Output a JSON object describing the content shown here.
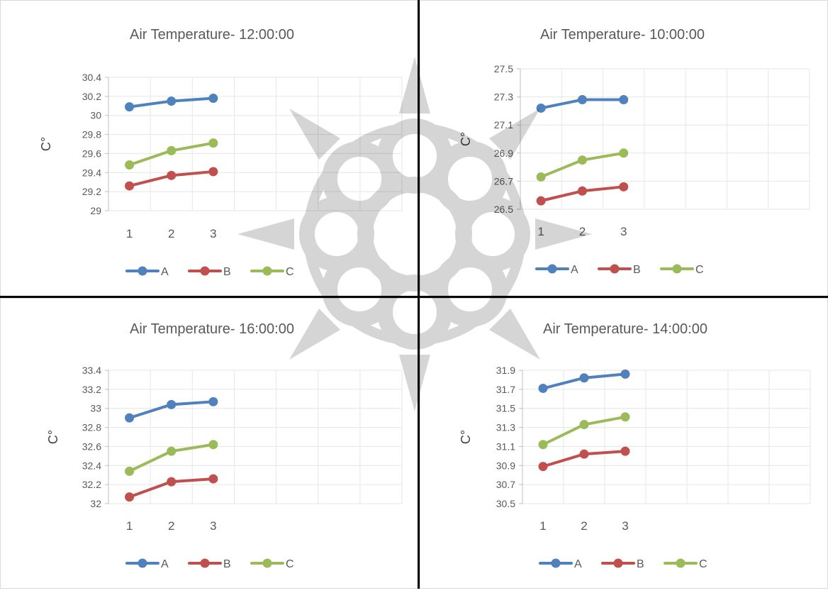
{
  "charts": [
    {
      "title": "Air Temperature- 12:00:00",
      "ylabel": "C°",
      "ylim": [
        29,
        30.4
      ],
      "yticks": [
        "29",
        "29.2",
        "29.4",
        "29.6",
        "29.8",
        "30",
        "30.2",
        "30.4"
      ],
      "xticks": [
        "1",
        "2",
        "3"
      ],
      "series": [
        {
          "name": "A",
          "color": "#4f81bd",
          "values": [
            30.09,
            30.15,
            30.18
          ]
        },
        {
          "name": "B",
          "color": "#c0504d",
          "values": [
            29.26,
            29.37,
            29.41
          ]
        },
        {
          "name": "C",
          "color": "#9bbb59",
          "values": [
            29.48,
            29.63,
            29.71
          ]
        }
      ]
    },
    {
      "title": "Air Temperature- 10:00:00",
      "ylabel": "C°",
      "ylim": [
        26.5,
        27.5
      ],
      "yticks": [
        "26.5",
        "26.7",
        "26.9",
        "27.1",
        "27.3",
        "27.5"
      ],
      "xticks": [
        "1",
        "2",
        "3"
      ],
      "series": [
        {
          "name": "A",
          "color": "#4f81bd",
          "values": [
            27.22,
            27.28,
            27.28
          ]
        },
        {
          "name": "B",
          "color": "#c0504d",
          "values": [
            26.56,
            26.63,
            26.66
          ]
        },
        {
          "name": "C",
          "color": "#9bbb59",
          "values": [
            26.73,
            26.85,
            26.9
          ]
        }
      ]
    },
    {
      "title": "Air Temperature- 16:00:00",
      "ylabel": "C°",
      "ylim": [
        32,
        33.4
      ],
      "yticks": [
        "32",
        "32.2",
        "32.4",
        "32.6",
        "32.8",
        "33",
        "33.2",
        "33.4"
      ],
      "xticks": [
        "1",
        "2",
        "3"
      ],
      "series": [
        {
          "name": "A",
          "color": "#4f81bd",
          "values": [
            32.9,
            33.04,
            33.07
          ]
        },
        {
          "name": "B",
          "color": "#c0504d",
          "values": [
            32.07,
            32.23,
            32.26
          ]
        },
        {
          "name": "C",
          "color": "#9bbb59",
          "values": [
            32.34,
            32.55,
            32.62
          ]
        }
      ]
    },
    {
      "title": "Air Temperature- 14:00:00",
      "ylabel": "C°",
      "ylim": [
        30.5,
        31.9
      ],
      "yticks": [
        "30.5",
        "30.7",
        "30.9",
        "31.1",
        "31.3",
        "31.5",
        "31.7",
        "31.9"
      ],
      "xticks": [
        "1",
        "2",
        "3"
      ],
      "series": [
        {
          "name": "A",
          "color": "#4f81bd",
          "values": [
            31.71,
            31.82,
            31.86
          ]
        },
        {
          "name": "B",
          "color": "#c0504d",
          "values": [
            30.89,
            31.02,
            31.05
          ]
        },
        {
          "name": "C",
          "color": "#9bbb59",
          "values": [
            31.12,
            31.33,
            31.41
          ]
        }
      ]
    }
  ],
  "chart_data": [
    {
      "type": "line",
      "title": "Air Temperature- 12:00:00",
      "xlabel": "",
      "ylabel": "C°",
      "x": [
        1,
        2,
        3
      ],
      "ylim": [
        29,
        30.4
      ],
      "grid": true,
      "legend": "bottom",
      "series": [
        {
          "name": "A",
          "values": [
            30.09,
            30.15,
            30.18
          ]
        },
        {
          "name": "B",
          "values": [
            29.26,
            29.37,
            29.41
          ]
        },
        {
          "name": "C",
          "values": [
            29.48,
            29.63,
            29.71
          ]
        }
      ]
    },
    {
      "type": "line",
      "title": "Air Temperature- 10:00:00",
      "xlabel": "",
      "ylabel": "C°",
      "x": [
        1,
        2,
        3
      ],
      "ylim": [
        26.5,
        27.5
      ],
      "grid": true,
      "legend": "bottom",
      "series": [
        {
          "name": "A",
          "values": [
            27.22,
            27.28,
            27.28
          ]
        },
        {
          "name": "B",
          "values": [
            26.56,
            26.63,
            26.66
          ]
        },
        {
          "name": "C",
          "values": [
            26.73,
            26.85,
            26.9
          ]
        }
      ]
    },
    {
      "type": "line",
      "title": "Air Temperature- 16:00:00",
      "xlabel": "",
      "ylabel": "C°",
      "x": [
        1,
        2,
        3
      ],
      "ylim": [
        32,
        33.4
      ],
      "grid": true,
      "legend": "bottom",
      "series": [
        {
          "name": "A",
          "values": [
            32.9,
            33.04,
            33.07
          ]
        },
        {
          "name": "B",
          "values": [
            32.07,
            32.23,
            32.26
          ]
        },
        {
          "name": "C",
          "values": [
            32.34,
            32.55,
            32.62
          ]
        }
      ]
    },
    {
      "type": "line",
      "title": "Air Temperature- 14:00:00",
      "xlabel": "",
      "ylabel": "C°",
      "x": [
        1,
        2,
        3
      ],
      "ylim": [
        30.5,
        31.9
      ],
      "grid": true,
      "legend": "bottom",
      "series": [
        {
          "name": "A",
          "values": [
            31.71,
            31.82,
            31.86
          ]
        },
        {
          "name": "B",
          "values": [
            30.89,
            31.02,
            31.05
          ]
        },
        {
          "name": "C",
          "values": [
            31.12,
            31.33,
            31.41
          ]
        }
      ]
    }
  ]
}
